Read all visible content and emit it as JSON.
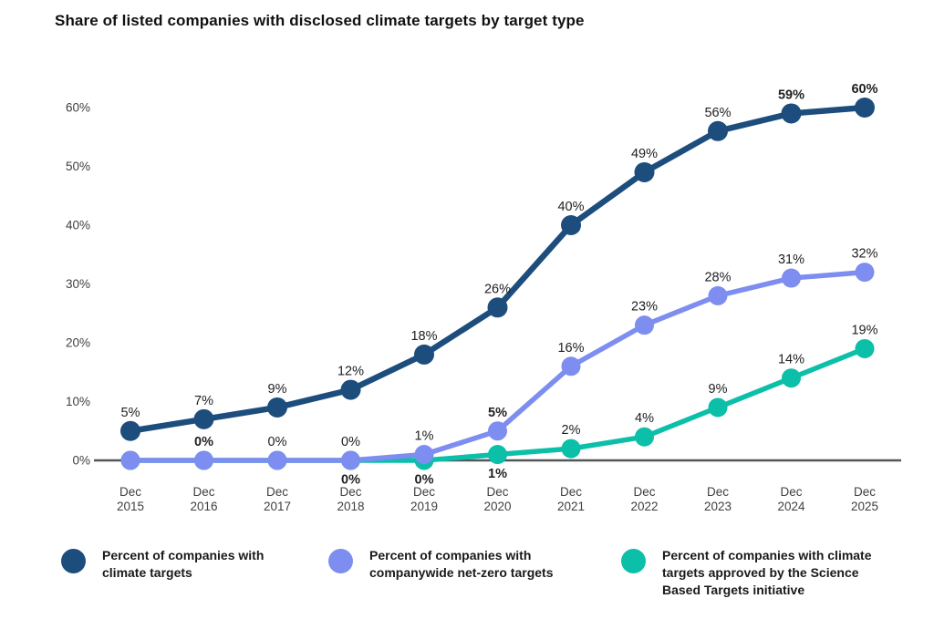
{
  "title": "Share of listed companies with disclosed climate targets by target type",
  "colors": {
    "navy": "#1d4d7d",
    "periwinkle": "#7d8df0",
    "teal": "#0bbfa8",
    "axis_line": "#55565a",
    "tick_text": "#3f3f3f",
    "label_text": "#202124",
    "title_text": "#111111",
    "background": "#ffffff"
  },
  "chart_data": {
    "type": "line",
    "title": "Share of listed companies with disclosed climate targets by target type",
    "x_tick_line1": "Dec",
    "years": [
      "2015",
      "2016",
      "2017",
      "2018",
      "2019",
      "2020",
      "2021",
      "2022",
      "2023",
      "2024",
      "2025"
    ],
    "categories": [
      "Dec 2015",
      "Dec 2016",
      "Dec 2017",
      "Dec 2018",
      "Dec 2019",
      "Dec 2020",
      "Dec 2021",
      "Dec 2022",
      "Dec 2023",
      "Dec 2024",
      "Dec 2025"
    ],
    "y_ticks": [
      "60%",
      "50%",
      "40%",
      "30%",
      "20%",
      "10%",
      "0%"
    ],
    "y_tick_values": [
      60,
      50,
      40,
      30,
      20,
      10,
      0
    ],
    "ylim": [
      0,
      60
    ],
    "grid": false,
    "legend_position": "bottom",
    "series": [
      {
        "name": "Percent of companies with climate targets",
        "color_key": "navy",
        "values": [
          5,
          7,
          9,
          12,
          18,
          26,
          40,
          49,
          56,
          59,
          60
        ],
        "labels": [
          {
            "text": "5%",
            "pos": "above",
            "bold": false
          },
          {
            "text": "7%",
            "pos": "above",
            "bold": false
          },
          {
            "text": "9%",
            "pos": "above",
            "bold": false
          },
          {
            "text": "12%",
            "pos": "above",
            "bold": false
          },
          {
            "text": "18%",
            "pos": "above",
            "bold": false
          },
          {
            "text": "26%",
            "pos": "above",
            "bold": false
          },
          {
            "text": "40%",
            "pos": "above",
            "bold": false
          },
          {
            "text": "49%",
            "pos": "above",
            "bold": false
          },
          {
            "text": "56%",
            "pos": "above",
            "bold": false
          },
          {
            "text": "59%",
            "pos": "above",
            "bold": true
          },
          {
            "text": "60%",
            "pos": "above",
            "bold": true
          }
        ]
      },
      {
        "name": "Percent of companies with companywide net-zero targets",
        "color_key": "periwinkle",
        "values": [
          0,
          0,
          0,
          0,
          1,
          5,
          16,
          23,
          28,
          31,
          32
        ],
        "labels": [
          null,
          {
            "text": "0%",
            "pos": "above",
            "bold": true
          },
          {
            "text": "0%",
            "pos": "above",
            "bold": false
          },
          {
            "text": "0%",
            "pos": "above",
            "bold": false
          },
          {
            "text": "1%",
            "pos": "above",
            "bold": false
          },
          {
            "text": "5%",
            "pos": "above",
            "bold": true
          },
          {
            "text": "16%",
            "pos": "above",
            "bold": false
          },
          {
            "text": "23%",
            "pos": "above",
            "bold": false
          },
          {
            "text": "28%",
            "pos": "above",
            "bold": false
          },
          {
            "text": "31%",
            "pos": "above",
            "bold": false
          },
          {
            "text": "32%",
            "pos": "above",
            "bold": false
          }
        ]
      },
      {
        "name": "Percent of companies with climate targets approved by the Science Based Targets initiative",
        "color_key": "teal",
        "values": [
          0,
          0,
          0,
          0,
          0,
          1,
          2,
          4,
          9,
          14,
          19
        ],
        "labels": [
          null,
          null,
          null,
          {
            "text": "0%",
            "pos": "below",
            "bold": true
          },
          {
            "text": "0%",
            "pos": "below",
            "bold": true
          },
          {
            "text": "1%",
            "pos": "below",
            "bold": true
          },
          {
            "text": "2%",
            "pos": "above",
            "bold": false
          },
          {
            "text": "4%",
            "pos": "above",
            "bold": false
          },
          {
            "text": "9%",
            "pos": "above",
            "bold": false
          },
          {
            "text": "14%",
            "pos": "above",
            "bold": false
          },
          {
            "text": "19%",
            "pos": "above",
            "bold": false
          }
        ]
      }
    ]
  },
  "legend": {
    "items": [
      {
        "color_key": "navy",
        "lines": [
          "Percent of companies with",
          "climate targets"
        ]
      },
      {
        "color_key": "periwinkle",
        "lines": [
          "Percent of companies with",
          "companywide net-zero targets"
        ]
      },
      {
        "color_key": "teal",
        "lines": [
          "Percent of companies with climate",
          "targets approved by the Science",
          "Based Targets initiative"
        ]
      }
    ]
  }
}
